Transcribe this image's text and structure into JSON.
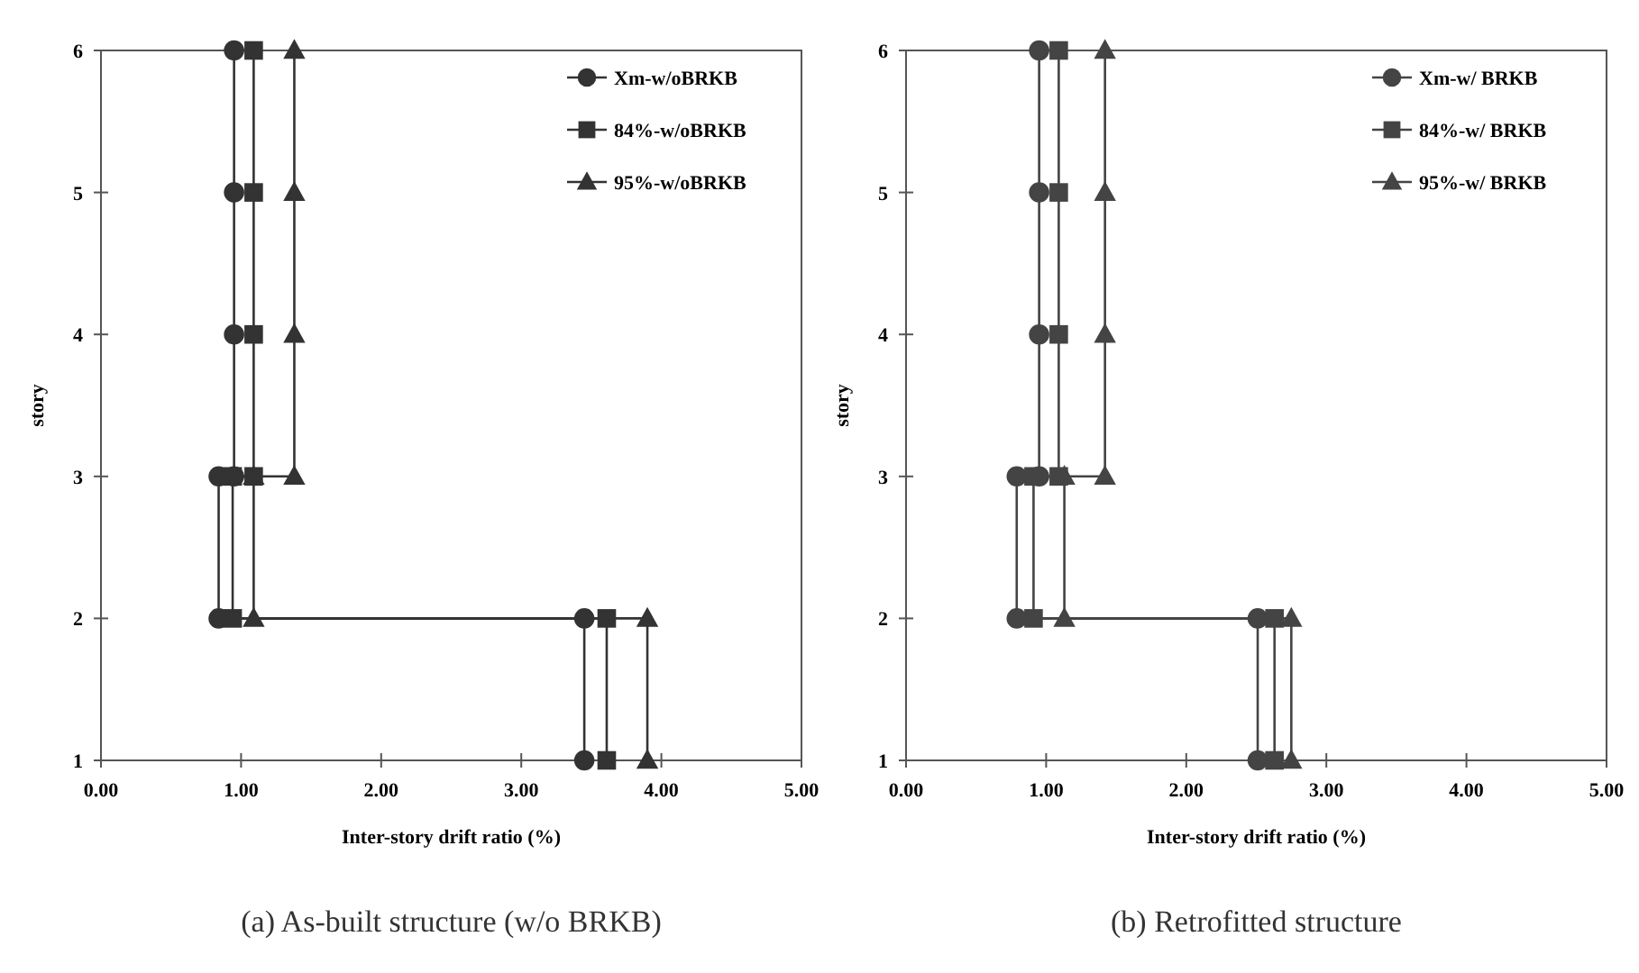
{
  "chart_data": [
    {
      "type": "line",
      "title": "(a) As-built structure (w/o BRKB)",
      "xlabel": "Inter-story drift ratio (%)",
      "ylabel": "story",
      "xlim": [
        0,
        5
      ],
      "xticks": [
        {
          "value": 0,
          "label": "0.00"
        },
        {
          "value": 1,
          "label": "1.00"
        },
        {
          "value": 2,
          "label": "2.00"
        },
        {
          "value": 3,
          "label": "3.00"
        },
        {
          "value": 4,
          "label": "4.00"
        },
        {
          "value": 5,
          "label": "5.00"
        }
      ],
      "ylim": [
        1,
        6
      ],
      "yticks": [
        1,
        2,
        3,
        4,
        5,
        6
      ],
      "legend": "top right",
      "line_style": "solid",
      "series": [
        {
          "name": "Xm-w/oBRKB",
          "color": "#333333",
          "marker": "circle",
          "x": [
            3.45,
            3.45,
            0.84,
            0.84,
            0.95,
            0.95,
            0.95,
            0.95
          ],
          "values": [
            1,
            2,
            2,
            3,
            3,
            4,
            5,
            6
          ]
        },
        {
          "name": "84%-w/oBRKB",
          "color": "#333333",
          "marker": "square",
          "x": [
            3.61,
            3.61,
            0.94,
            0.94,
            1.09,
            1.09,
            1.09,
            1.09
          ],
          "values": [
            1,
            2,
            2,
            3,
            3,
            4,
            5,
            6
          ]
        },
        {
          "name": "95%-w/oBRKB",
          "color": "#333333",
          "marker": "triangle",
          "x": [
            3.9,
            3.9,
            1.09,
            1.09,
            1.38,
            1.38,
            1.38,
            1.38
          ],
          "values": [
            1,
            2,
            2,
            3,
            3,
            4,
            5,
            6
          ]
        }
      ]
    },
    {
      "type": "line",
      "title": "(b) Retrofitted structure",
      "xlabel": "Inter-story drift ratio (%)",
      "ylabel": "story",
      "xlim": [
        0,
        5
      ],
      "xticks": [
        {
          "value": 0,
          "label": "0.00"
        },
        {
          "value": 1,
          "label": "1.00"
        },
        {
          "value": 2,
          "label": "2.00"
        },
        {
          "value": 3,
          "label": "3.00"
        },
        {
          "value": 4,
          "label": "4.00"
        },
        {
          "value": 5,
          "label": "5.00"
        }
      ],
      "ylim": [
        1,
        6
      ],
      "yticks": [
        1,
        2,
        3,
        4,
        5,
        6
      ],
      "legend": "top right",
      "line_style": "solid",
      "series": [
        {
          "name": "Xm-w/ BRKB",
          "color": "#444444",
          "marker": "circle",
          "x": [
            2.51,
            2.51,
            0.79,
            0.79,
            0.95,
            0.95,
            0.95,
            0.95
          ],
          "values": [
            1,
            2,
            2,
            3,
            3,
            4,
            5,
            6
          ]
        },
        {
          "name": "84%-w/ BRKB",
          "color": "#444444",
          "marker": "square",
          "x": [
            2.63,
            2.63,
            0.91,
            0.91,
            1.09,
            1.09,
            1.09,
            1.09
          ],
          "values": [
            1,
            2,
            2,
            3,
            3,
            4,
            5,
            6
          ]
        },
        {
          "name": "95%-w/ BRKB",
          "color": "#444444",
          "marker": "triangle",
          "x": [
            2.75,
            2.75,
            1.13,
            1.13,
            1.42,
            1.42,
            1.42,
            1.42
          ],
          "values": [
            1,
            2,
            2,
            3,
            3,
            4,
            5,
            6
          ]
        }
      ]
    }
  ]
}
